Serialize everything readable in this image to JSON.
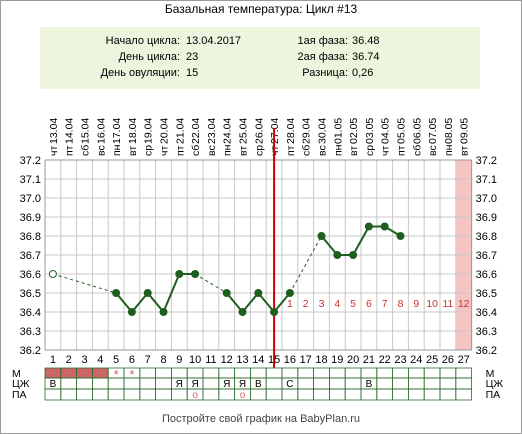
{
  "title": "Базальная температура: Цикл #13",
  "info": {
    "start_label": "Начало цикла:",
    "start_value": "13.04.2017",
    "day_label": "День цикла:",
    "day_value": "23",
    "ovulation_label": "День овуляции:",
    "ovulation_value": "15",
    "phase1_label": "1ая фаза:",
    "phase1_value": "36.48",
    "phase2_label": "2ая фаза:",
    "phase2_value": "36.74",
    "diff_label": "Разница:",
    "diff_value": "0,26"
  },
  "footer": "Постройте свой график на BabyPlan.ru",
  "colors": {
    "line": "#1f5e1f",
    "ovulation": "#cc0000",
    "mens": "#cc6666",
    "highlight": "#f7c4c4",
    "info_bg": "#edf5de",
    "post_ovulation_text": "#cc3333"
  },
  "chart_data": {
    "type": "line",
    "dates": [
      "13.04",
      "14.04",
      "15.04",
      "16.04",
      "17.04",
      "18.04",
      "19.04",
      "20.04",
      "21.04",
      "22.04",
      "23.04",
      "24.04",
      "25.04",
      "26.04",
      "27.04",
      "28.04",
      "29.04",
      "30.04",
      "01.05",
      "02.05",
      "03.05",
      "04.05",
      "05.05",
      "06.05",
      "07.05",
      "08.05",
      "09.05"
    ],
    "weekdays": [
      "чт",
      "пт",
      "сб",
      "вс",
      "пн",
      "вт",
      "ср",
      "чт",
      "пт",
      "сб",
      "вс",
      "пн",
      "вт",
      "ср",
      "чт",
      "пт",
      "сб",
      "вс",
      "пн",
      "вт",
      "ср",
      "чт",
      "пт",
      "сб",
      "вс",
      "пн",
      "вт"
    ],
    "days": [
      1,
      2,
      3,
      4,
      5,
      6,
      7,
      8,
      9,
      10,
      11,
      12,
      13,
      14,
      15,
      16,
      17,
      18,
      19,
      20,
      21,
      22,
      23,
      24,
      25,
      26,
      27
    ],
    "temperatures": [
      36.6,
      null,
      null,
      null,
      36.5,
      36.4,
      36.5,
      36.4,
      36.6,
      36.6,
      null,
      36.5,
      36.4,
      36.5,
      36.4,
      36.5,
      null,
      36.8,
      36.7,
      36.7,
      36.85,
      36.85,
      36.8,
      null,
      null,
      null,
      null
    ],
    "open_points": [
      1
    ],
    "ylim": [
      36.2,
      37.2
    ],
    "yticks": [
      "36.2",
      "36.3",
      "36.4",
      "36.5",
      "36.6",
      "36.7",
      "36.8",
      "36.9",
      "37.0",
      "37.1",
      "37.2"
    ],
    "ovulation_day": 15,
    "highlight_day": 27,
    "post_ovulation_labels": [
      {
        "day": 16,
        "text": "1"
      },
      {
        "day": 17,
        "text": "2"
      },
      {
        "day": 18,
        "text": "3"
      },
      {
        "day": 19,
        "text": "4"
      },
      {
        "day": 20,
        "text": "5"
      },
      {
        "day": 21,
        "text": "6"
      },
      {
        "day": 22,
        "text": "7"
      },
      {
        "day": 23,
        "text": "8"
      },
      {
        "day": 24,
        "text": "9"
      },
      {
        "day": 25,
        "text": "10"
      },
      {
        "day": 26,
        "text": "11"
      },
      {
        "day": 27,
        "text": "12"
      }
    ],
    "rows": {
      "labels": [
        "М",
        "ЦЖ",
        "ПА"
      ],
      "mens_days": [
        1,
        2,
        3,
        4
      ],
      "mens_star_days": [
        5,
        6
      ],
      "star": "*",
      "cervix": [
        {
          "day": 1,
          "text": "В"
        },
        {
          "day": 9,
          "text": "Я"
        },
        {
          "day": 10,
          "text": "Я"
        },
        {
          "day": 12,
          "text": "Я"
        },
        {
          "day": 13,
          "text": "Я"
        },
        {
          "day": 14,
          "text": "В"
        },
        {
          "day": 16,
          "text": "С"
        },
        {
          "day": 21,
          "text": "В"
        }
      ],
      "intercourse_days": [
        10,
        13
      ],
      "intercourse_mark": "o"
    }
  }
}
